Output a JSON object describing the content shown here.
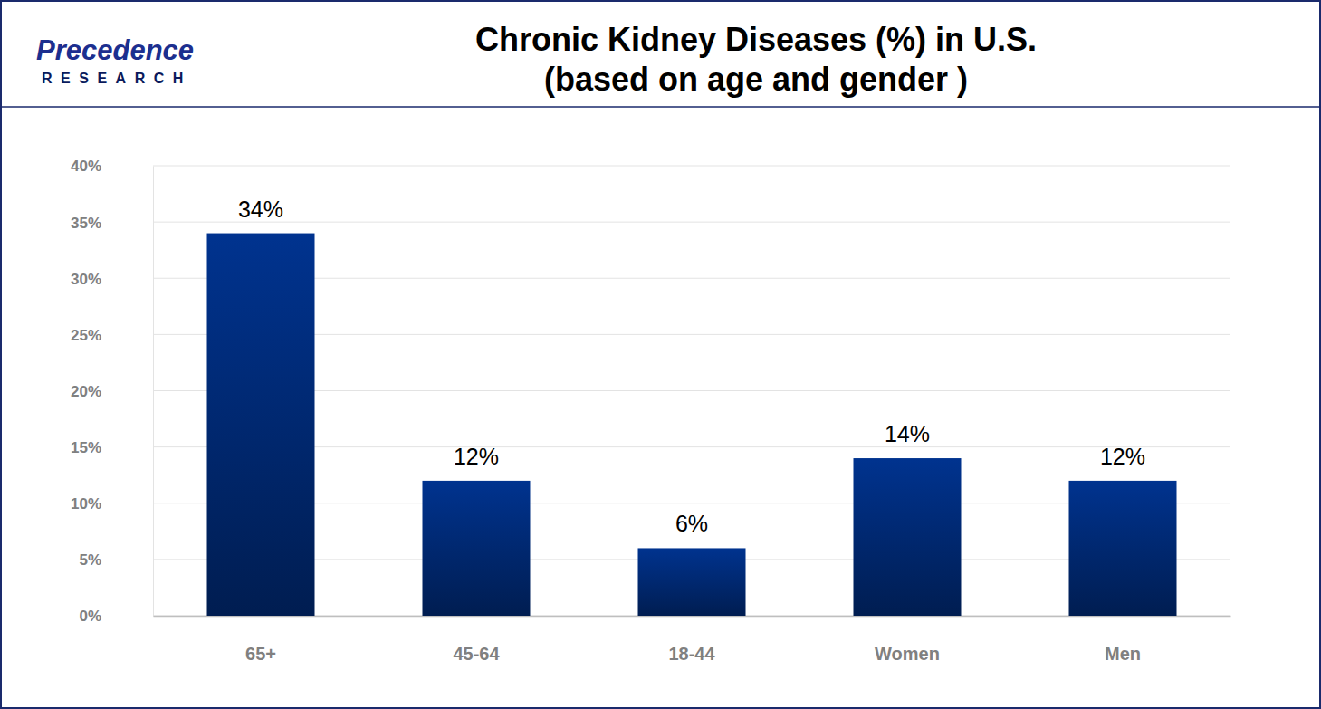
{
  "chart_data": {
    "type": "bar",
    "title": "Chronic Kidney Diseases (%) in U.S.",
    "subtitle": "(based on age and gender )",
    "annotations": [
      "Precedence",
      "RESEARCH"
    ],
    "categories": [
      "65+",
      "45-64",
      "18-44",
      "Women",
      "Men"
    ],
    "values": [
      34,
      12,
      6,
      14,
      12
    ],
    "value_labels": [
      "34%",
      "12%",
      "6%",
      "14%",
      "12%"
    ],
    "color": "#00338f",
    "ylim": [
      0,
      40
    ],
    "yticks": [
      {
        "value": 0,
        "label": "0%"
      },
      {
        "value": 5,
        "label": "5%"
      },
      {
        "value": 10,
        "label": "10%"
      },
      {
        "value": 15,
        "label": "15%"
      },
      {
        "value": 20,
        "label": "20%"
      },
      {
        "value": 25,
        "label": "25%"
      },
      {
        "value": 30,
        "label": "30%"
      },
      {
        "value": 35,
        "label": "35%"
      },
      {
        "value": 40,
        "label": "40%"
      }
    ],
    "grid": true,
    "data_labels": true
  }
}
